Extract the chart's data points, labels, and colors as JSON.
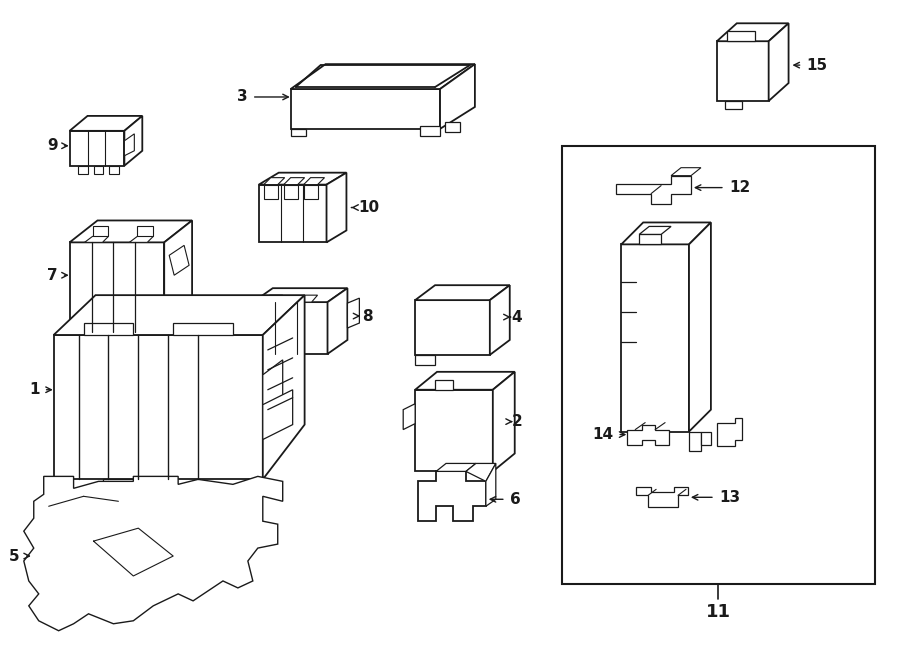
{
  "bg": "#ffffff",
  "lc": "#1a1a1a",
  "lw": 1.3,
  "fig_w": 9.0,
  "fig_h": 6.61,
  "dpi": 100
}
